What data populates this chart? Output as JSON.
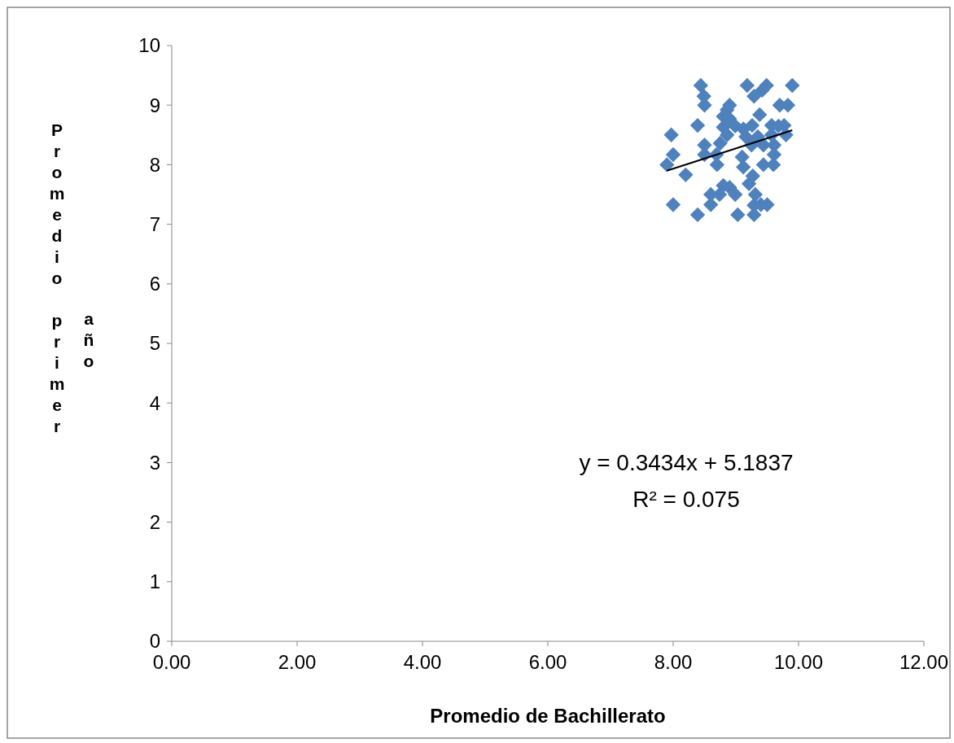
{
  "chart_data": {
    "type": "scatter",
    "xlabel": "Promedio de Bachillerato",
    "ylabel": "Promedio primer año",
    "marker": "diamond",
    "xlim": [
      0,
      12
    ],
    "ylim": [
      0,
      10
    ],
    "xticks": [
      {
        "value": 0,
        "label": "0.00"
      },
      {
        "value": 2,
        "label": "2.00"
      },
      {
        "value": 4,
        "label": "4.00"
      },
      {
        "value": 6,
        "label": "6.00"
      },
      {
        "value": 8,
        "label": "8.00"
      },
      {
        "value": 10,
        "label": "10.00"
      },
      {
        "value": 12,
        "label": "12.00"
      }
    ],
    "yticks": [
      0,
      1,
      2,
      3,
      4,
      5,
      6,
      7,
      8,
      9,
      10
    ],
    "annotations": [
      "y = 0.3434x + 5.1837",
      "R² = 0.075"
    ],
    "series": [
      {
        "color": "#4f81bd",
        "x": [
          7.9,
          7.97,
          8.0,
          8.0,
          8.2,
          8.39,
          8.39,
          8.49,
          8.5,
          8.5,
          8.5,
          8.6,
          8.6,
          8.44,
          8.69,
          8.7,
          8.75,
          8.8,
          8.8,
          8.86,
          8.9,
          8.9,
          8.86,
          8.8,
          8.9,
          8.74,
          8.99,
          9.03,
          9.12,
          9.1,
          9.12,
          9.18,
          9.21,
          9.26,
          9.29,
          9.27,
          9.31,
          9.29,
          9.29,
          9.35,
          9.38,
          9.42,
          9.49,
          9.44,
          9.44,
          9.4,
          9.5,
          9.57,
          9.57,
          9.61,
          9.6,
          9.61,
          9.68,
          9.7,
          9.77,
          9.83,
          9.8,
          9.9,
          8.99,
          9.25,
          9.16
        ],
        "values": [
          8.0,
          8.5,
          8.17,
          7.33,
          7.83,
          8.66,
          7.16,
          9.15,
          9.0,
          8.33,
          8.17,
          7.5,
          7.33,
          9.33,
          8.17,
          8.0,
          8.36,
          8.63,
          8.81,
          8.92,
          9.0,
          8.77,
          8.5,
          7.65,
          7.62,
          7.5,
          7.5,
          7.16,
          8.6,
          8.13,
          7.96,
          9.33,
          7.68,
          8.66,
          9.15,
          7.81,
          7.5,
          7.32,
          7.16,
          8.47,
          8.84,
          9.25,
          9.33,
          8.0,
          8.33,
          7.33,
          7.33,
          8.66,
          8.5,
          8.17,
          8.0,
          8.33,
          8.65,
          9.0,
          8.66,
          9.0,
          8.5,
          9.33,
          8.65,
          8.33,
          8.47
        ]
      },
      {
        "type": "line",
        "marker": "none",
        "color": "#000000",
        "x": [
          7.9,
          9.9
        ],
        "values": [
          7.9,
          8.58
        ]
      }
    ]
  }
}
